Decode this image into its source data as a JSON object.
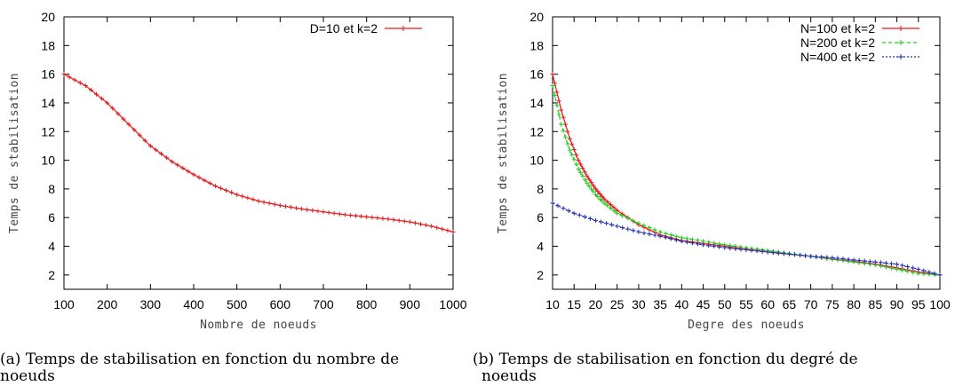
{
  "chart_data": [
    {
      "type": "line",
      "xlabel": "Nombre de noeuds",
      "ylabel": "Temps de stabilisation",
      "xlim": [
        100,
        1000
      ],
      "ylim": [
        1,
        20
      ],
      "x_ticks": [
        100,
        200,
        300,
        400,
        500,
        600,
        700,
        800,
        900,
        1000
      ],
      "y_ticks": [
        2,
        4,
        6,
        8,
        10,
        12,
        14,
        16,
        18,
        20
      ],
      "legend_position": "top-right",
      "grid": false,
      "caption_label": "(a)",
      "caption_main": "Temps de stabilisation en fonction du nombre de",
      "caption_cont": "noeuds",
      "series": [
        {
          "name": "D=10 et k=2",
          "color": "#e41a1c",
          "marker": "+",
          "x": [
            100,
            150,
            200,
            250,
            300,
            350,
            400,
            450,
            500,
            550,
            600,
            650,
            700,
            750,
            800,
            850,
            900,
            950,
            1000
          ],
          "y": [
            16.0,
            15.2,
            14.0,
            12.5,
            11.0,
            9.9,
            9.0,
            8.2,
            7.6,
            7.15,
            6.85,
            6.6,
            6.4,
            6.2,
            6.05,
            5.9,
            5.7,
            5.4,
            5.0
          ]
        }
      ]
    },
    {
      "type": "line",
      "xlabel": "Degre des noeuds",
      "ylabel": "Temps de stabilisation",
      "xlim": [
        10,
        100
      ],
      "ylim": [
        1,
        20
      ],
      "x_ticks": [
        10,
        15,
        20,
        25,
        30,
        35,
        40,
        45,
        50,
        55,
        60,
        65,
        70,
        75,
        80,
        85,
        90,
        95,
        100
      ],
      "y_ticks": [
        2,
        4,
        6,
        8,
        10,
        12,
        14,
        16,
        18,
        20
      ],
      "legend_position": "top-right",
      "grid": false,
      "caption_label": "(b)",
      "caption_main": "Temps de stabilisation en fonction du degré de",
      "caption_cont": "noeuds",
      "series": [
        {
          "name": "N=100 et k=2",
          "color": "#e41a1c",
          "marker": "+",
          "x": [
            10,
            12,
            14,
            16,
            18,
            20,
            22,
            25,
            30,
            35,
            40,
            45,
            50,
            55,
            60,
            65,
            70,
            75,
            80,
            85,
            90,
            95,
            100
          ],
          "y": [
            16.0,
            13.5,
            11.5,
            10.0,
            8.9,
            8.0,
            7.3,
            6.5,
            5.5,
            4.8,
            4.4,
            4.2,
            4.0,
            3.8,
            3.6,
            3.45,
            3.3,
            3.1,
            2.95,
            2.75,
            2.5,
            2.2,
            2.0
          ]
        },
        {
          "name": "N=200 et k=2",
          "color": "#22cc22",
          "marker": "+",
          "x": [
            10,
            12,
            14,
            16,
            18,
            20,
            22,
            25,
            30,
            35,
            40,
            45,
            50,
            55,
            60,
            65,
            70,
            75,
            80,
            85,
            90,
            95,
            100
          ],
          "y": [
            15.2,
            12.5,
            10.7,
            9.4,
            8.4,
            7.6,
            7.0,
            6.3,
            5.6,
            5.0,
            4.6,
            4.35,
            4.1,
            3.9,
            3.7,
            3.5,
            3.3,
            3.1,
            2.9,
            2.7,
            2.4,
            2.1,
            2.0
          ]
        },
        {
          "name": "N=400 et k=2",
          "color": "#1f2fb8",
          "marker": "+",
          "x": [
            10,
            15,
            20,
            25,
            30,
            35,
            40,
            45,
            50,
            55,
            60,
            65,
            70,
            75,
            80,
            85,
            90,
            95,
            100
          ],
          "y": [
            7.0,
            6.3,
            5.8,
            5.4,
            5.0,
            4.7,
            4.35,
            4.1,
            3.9,
            3.75,
            3.6,
            3.45,
            3.3,
            3.2,
            3.05,
            2.9,
            2.75,
            2.4,
            2.0
          ]
        }
      ]
    }
  ]
}
